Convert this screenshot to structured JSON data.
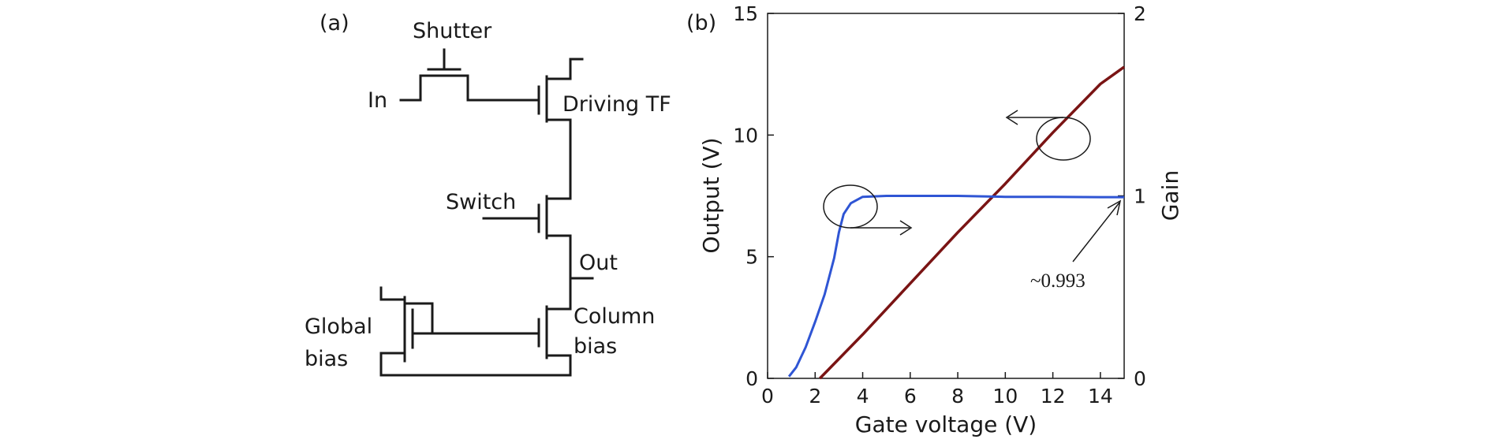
{
  "panel_a": {
    "label": "(a)",
    "nodes": {
      "shutter": "Shutter",
      "in": "In",
      "driving": "Driving TF",
      "switch": "Switch",
      "out": "Out",
      "global_1": "Global",
      "global_2": "bias",
      "column_1": "Column",
      "column_2": "bias"
    }
  },
  "panel_b": {
    "label": "(b)",
    "annotation": "~0.993"
  },
  "chart_data": {
    "type": "line",
    "title": "",
    "xlabel": "Gate voltage (V)",
    "ylabel": "Output (V)",
    "y2label": "Gain",
    "xlim": [
      0,
      15
    ],
    "ylim": [
      0,
      15
    ],
    "y2lim": [
      0,
      2
    ],
    "xticks": [
      0,
      2,
      4,
      6,
      8,
      10,
      12,
      14
    ],
    "yticks": [
      0,
      5,
      10,
      15
    ],
    "y2ticks": [
      0,
      1,
      2
    ],
    "grid": false,
    "series": [
      {
        "axis": "left",
        "color": "#7a1414",
        "x": [
          2.2,
          4,
          6,
          8,
          10,
          12,
          14,
          15
        ],
        "y": [
          0,
          1.8,
          3.9,
          6.0,
          8.0,
          10.1,
          12.1,
          12.8
        ]
      },
      {
        "axis": "right",
        "color": "#2f55d4",
        "x": [
          0.9,
          1.2,
          1.6,
          2.0,
          2.4,
          2.8,
          3.0,
          3.2,
          3.5,
          4,
          5,
          6,
          8,
          10,
          12,
          14,
          15
        ],
        "y": [
          0.01,
          0.06,
          0.17,
          0.31,
          0.46,
          0.66,
          0.8,
          0.9,
          0.96,
          0.995,
          1.0,
          1.0,
          1.0,
          0.995,
          0.995,
          0.993,
          0.993
        ]
      }
    ]
  }
}
